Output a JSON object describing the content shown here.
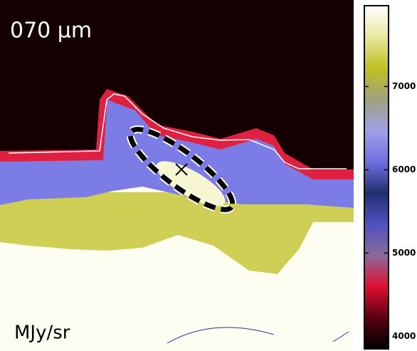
{
  "chart_data": {
    "type": "image",
    "title": "070 μm",
    "colorbar_label": "MJy/sr",
    "clim": [
      3850,
      7970
    ],
    "cticks": [
      4000,
      5000,
      6000,
      7000
    ],
    "colormap": [
      "#000000",
      "#5a0010",
      "#e01030",
      "#8a6a9a",
      "#5050c0",
      "#203070",
      "#7070e0",
      "#a0a0e8",
      "#a0a080",
      "#c0c020",
      "#e8e8a0",
      "#ffffff"
    ]
  }
}
